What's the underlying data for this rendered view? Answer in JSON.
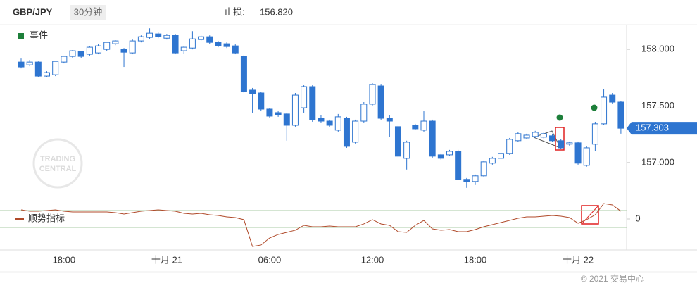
{
  "header": {
    "symbol": "GBP/JPY",
    "interval": "30分钟",
    "stop_loss_label": "止损:",
    "stop_loss": "156.820"
  },
  "watermark": [
    "TRADING",
    "CENTRAL"
  ],
  "copyright": "© 2021 交易中心",
  "chart_data": [
    {
      "type": "candlestick",
      "legend": "事件",
      "up_color": "#ffffff",
      "down_color": "#2e75d0",
      "ylim": [
        156.75,
        158.2
      ],
      "yticks": [
        {
          "value": 158,
          "label": "158.000"
        },
        {
          "value": 157.5,
          "label": "157.500"
        },
        {
          "value": 157,
          "label": "157.000"
        }
      ],
      "grid": false,
      "categories": [
        null,
        null,
        null,
        null,
        null,
        "18:00",
        null,
        null,
        null,
        null,
        null,
        null,
        null,
        null,
        null,
        null,
        null,
        "十月 21",
        null,
        null,
        null,
        null,
        null,
        null,
        null,
        null,
        null,
        null,
        null,
        "06:00",
        null,
        null,
        null,
        null,
        null,
        null,
        null,
        null,
        null,
        null,
        null,
        "12:00",
        null,
        null,
        null,
        null,
        null,
        null,
        null,
        null,
        null,
        null,
        null,
        "18:00",
        null,
        null,
        null,
        null,
        null,
        null,
        null,
        null,
        null,
        null,
        null,
        "十月 22",
        null,
        null,
        null,
        null,
        null
      ],
      "open": [
        157.888,
        157.863,
        157.888,
        157.764,
        157.776,
        157.888,
        157.938,
        157.981,
        157.957,
        157.969,
        158.0,
        158.05,
        158.0,
        157.969,
        158.075,
        158.106,
        158.137,
        158.099,
        158.124,
        157.988,
        158.012,
        158.087,
        158.112,
        158.062,
        158.05,
        158.031,
        157.938,
        157.64,
        157.615,
        157.472,
        157.441,
        157.429,
        157.329,
        157.484,
        157.671,
        157.391,
        157.366,
        157.286,
        157.391,
        157.18,
        157.366,
        157.516,
        157.677,
        157.391,
        157.317,
        157.037,
        157.329,
        157.286,
        157.366,
        157.068,
        157.068,
        157.099,
        156.851,
        156.832,
        156.882,
        156.994,
        157.037,
        157.081,
        157.193,
        157.217,
        157.23,
        157.224,
        157.236,
        157.193,
        157.162,
        157.174,
        156.975,
        157.162,
        157.342,
        157.596,
        157.534
      ],
      "high": [
        157.919,
        157.907,
        157.894,
        157.807,
        157.901,
        157.944,
        157.994,
        157.988,
        158.031,
        158.044,
        158.068,
        158.081,
        158.012,
        158.087,
        158.124,
        158.186,
        158.149,
        158.137,
        158.137,
        158.031,
        158.161,
        158.124,
        158.124,
        158.075,
        158.062,
        158.044,
        157.95,
        157.659,
        157.627,
        157.484,
        157.453,
        157.441,
        157.615,
        157.683,
        157.683,
        157.416,
        157.379,
        157.429,
        157.404,
        157.379,
        157.534,
        157.702,
        157.689,
        157.416,
        157.329,
        157.193,
        157.342,
        157.453,
        157.379,
        157.081,
        157.112,
        157.112,
        156.863,
        156.894,
        157.018,
        157.05,
        157.093,
        157.217,
        157.267,
        157.255,
        157.28,
        157.267,
        157.255,
        157.205,
        157.186,
        157.186,
        157.143,
        157.36,
        157.646,
        157.615,
        157.546
      ],
      "low": [
        157.832,
        157.851,
        157.752,
        157.752,
        157.764,
        157.876,
        157.926,
        157.926,
        157.944,
        157.957,
        157.988,
        158.037,
        157.845,
        157.957,
        158.062,
        158.093,
        158.099,
        158.087,
        157.957,
        157.963,
        158.0,
        158.075,
        158.05,
        158.019,
        158.012,
        157.957,
        157.615,
        157.441,
        157.453,
        157.398,
        157.404,
        157.193,
        157.317,
        157.441,
        157.36,
        157.354,
        157.317,
        157.273,
        157.13,
        157.168,
        157.354,
        157.504,
        157.379,
        157.224,
        157.043,
        156.938,
        157.286,
        157.273,
        157.043,
        157.025,
        157.056,
        156.845,
        156.776,
        156.801,
        156.87,
        156.981,
        157.025,
        157.068,
        157.18,
        157.205,
        157.217,
        157.211,
        157.18,
        157.118,
        157.149,
        156.981,
        156.963,
        157.099,
        157.329,
        157.522,
        157.255
      ],
      "close": [
        157.845,
        157.888,
        157.764,
        157.795,
        157.894,
        157.938,
        157.988,
        157.938,
        158.019,
        158.031,
        158.062,
        158.075,
        157.975,
        158.075,
        158.112,
        158.143,
        158.112,
        158.124,
        157.969,
        158.019,
        158.093,
        158.112,
        158.062,
        158.031,
        158.025,
        157.969,
        157.627,
        157.609,
        157.472,
        157.41,
        157.422,
        157.329,
        157.596,
        157.671,
        157.379,
        157.366,
        157.329,
        157.404,
        157.143,
        157.366,
        157.516,
        157.689,
        157.391,
        157.366,
        157.056,
        157.18,
        157.298,
        157.366,
        157.056,
        157.037,
        157.099,
        156.851,
        156.832,
        156.882,
        157.006,
        157.037,
        157.081,
        157.205,
        157.255,
        157.242,
        157.267,
        157.255,
        157.193,
        157.13,
        157.174,
        156.994,
        157.13,
        157.342,
        157.578,
        157.534,
        157.303
      ]
    },
    {
      "type": "line",
      "ylim": [
        -350,
        200
      ],
      "yticks": [
        0
      ],
      "levels": [
        100,
        -100
      ],
      "level_color": "#a9cba4",
      "series": [
        {
          "name": "顺势指标",
          "color": "#b04a2a",
          "values": [
            108,
            92,
            92,
            100,
            108,
            92,
            83,
            83,
            83,
            83,
            83,
            75,
            58,
            75,
            92,
            100,
            108,
            100,
            92,
            67,
            58,
            67,
            50,
            42,
            25,
            17,
            -8,
            -325,
            -308,
            -225,
            -183,
            -158,
            -133,
            -75,
            -92,
            -92,
            -83,
            -92,
            -92,
            -92,
            -58,
            -8,
            -58,
            -75,
            -150,
            -158,
            -75,
            -17,
            -117,
            -133,
            -125,
            -150,
            -150,
            -125,
            -92,
            -67,
            -42,
            -17,
            8,
            25,
            25,
            33,
            42,
            33,
            17,
            -50,
            -8,
            50,
            183,
            167,
            92
          ]
        }
      ]
    }
  ]
}
